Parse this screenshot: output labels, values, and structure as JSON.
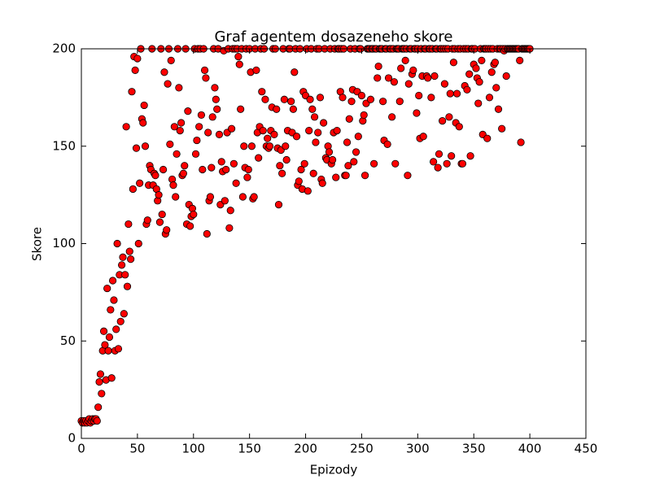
{
  "chart_data": {
    "type": "scatter",
    "title": "Graf agentem dosazeneho skore",
    "x_label": "Epizody",
    "y_label": "Skore",
    "xlim": [
      0,
      450
    ],
    "ylim": [
      0,
      200
    ],
    "xticks": [
      0,
      50,
      100,
      150,
      200,
      250,
      300,
      350,
      400,
      450
    ],
    "yticks": [
      0,
      50,
      100,
      150,
      200
    ],
    "grid": false,
    "series": [
      {
        "color": "#ff0000",
        "x": [
          0,
          1,
          2,
          3,
          4,
          5,
          6,
          7,
          8,
          9,
          10,
          11,
          12,
          13,
          14,
          15,
          16,
          17,
          18,
          19,
          20,
          21,
          22,
          23,
          24,
          25,
          26,
          27,
          28,
          29,
          30,
          31,
          32,
          33,
          34,
          35,
          36,
          37,
          38,
          39,
          40,
          41,
          42,
          43,
          44,
          45,
          46,
          47,
          48,
          49,
          50,
          51,
          52,
          53,
          54,
          55,
          56,
          57,
          58,
          59,
          60,
          61,
          62,
          63,
          64,
          65,
          66,
          67,
          68,
          69,
          70,
          71,
          72,
          73,
          74,
          75,
          76,
          77,
          78,
          79,
          80,
          81,
          82,
          83,
          84,
          85,
          86,
          87,
          88,
          89,
          90,
          91,
          92,
          93,
          94,
          95,
          96,
          97,
          98,
          99,
          100,
          101,
          102,
          103,
          104,
          105,
          106,
          107,
          108,
          109,
          110,
          111,
          112,
          113,
          114,
          115,
          116,
          117,
          118,
          119,
          120,
          121,
          122,
          123,
          124,
          125,
          126,
          127,
          128,
          129,
          130,
          131,
          132,
          133,
          134,
          135,
          136,
          137,
          138,
          139,
          140,
          141,
          142,
          143,
          144,
          145,
          146,
          147,
          148,
          149,
          150,
          151,
          152,
          153,
          154,
          155,
          156,
          157,
          158,
          159,
          160,
          161,
          162,
          163,
          164,
          165,
          166,
          167,
          168,
          169,
          170,
          171,
          172,
          173,
          174,
          175,
          176,
          177,
          178,
          179,
          180,
          181,
          182,
          183,
          184,
          185,
          186,
          187,
          188,
          189,
          190,
          191,
          192,
          193,
          194,
          195,
          196,
          197,
          198,
          199,
          200,
          201,
          202,
          203,
          204,
          205,
          206,
          207,
          208,
          209,
          210,
          211,
          212,
          213,
          214,
          215,
          216,
          217,
          218,
          219,
          220,
          221,
          222,
          223,
          224,
          225,
          226,
          227,
          228,
          229,
          230,
          231,
          232,
          233,
          234,
          235,
          236,
          237,
          238,
          239,
          240,
          241,
          242,
          243,
          244,
          245,
          246,
          247,
          248,
          249,
          250,
          251,
          252,
          253,
          254,
          255,
          256,
          257,
          258,
          259,
          260,
          261,
          262,
          263,
          264,
          265,
          266,
          267,
          268,
          269,
          270,
          271,
          272,
          273,
          274,
          275,
          276,
          277,
          278,
          279,
          280,
          281,
          282,
          283,
          284,
          285,
          286,
          287,
          288,
          289,
          290,
          291,
          292,
          293,
          294,
          295,
          296,
          297,
          298,
          299,
          300,
          301,
          302,
          303,
          304,
          305,
          306,
          307,
          308,
          309,
          310,
          311,
          312,
          313,
          314,
          315,
          316,
          317,
          318,
          319,
          320,
          321,
          322,
          323,
          324,
          325,
          326,
          327,
          328,
          329,
          330,
          331,
          332,
          333,
          334,
          335,
          336,
          337,
          338,
          339,
          340,
          341,
          342,
          343,
          344,
          345,
          346,
          347,
          348,
          349,
          350,
          351,
          352,
          353,
          354,
          355,
          356,
          357,
          358,
          359,
          360,
          361,
          362,
          363,
          364,
          365,
          366,
          367,
          368,
          369,
          370,
          371,
          372,
          373,
          374,
          375,
          376,
          377,
          378,
          379,
          380,
          381,
          382,
          383,
          384,
          385,
          386,
          387,
          388,
          389,
          390,
          391,
          392,
          393,
          394,
          395,
          396,
          397,
          398,
          399,
          400
        ],
        "values": [
          9,
          8,
          9,
          8,
          9,
          8,
          9,
          10,
          8,
          9,
          10,
          9,
          10,
          10,
          9,
          16,
          29,
          33,
          23,
          45,
          55,
          48,
          30,
          77,
          45,
          52,
          66,
          31,
          81,
          71,
          45,
          56,
          100,
          46,
          84,
          60,
          89,
          93,
          64,
          84,
          160,
          78,
          110,
          96,
          92,
          178,
          128,
          196,
          189,
          149,
          195,
          100,
          131,
          200,
          164,
          162,
          171,
          150,
          110,
          112,
          130,
          140,
          138,
          200,
          130,
          136,
          135,
          128,
          122,
          125,
          111,
          200,
          115,
          138,
          188,
          105,
          107,
          182,
          200,
          151,
          194,
          133,
          130,
          160,
          124,
          146,
          200,
          180,
          158,
          162,
          135,
          136,
          140,
          200,
          110,
          168,
          120,
          109,
          114,
          118,
          115,
          200,
          146,
          153,
          200,
          160,
          200,
          166,
          138,
          200,
          189,
          185,
          105,
          157,
          122,
          124,
          139,
          165,
          200,
          180,
          174,
          169,
          200,
          156,
          120,
          142,
          137,
          199,
          122,
          138,
          157,
          200,
          108,
          117,
          159,
          200,
          141,
          200,
          131,
          200,
          196,
          192,
          169,
          200,
          124,
          150,
          139,
          200,
          134,
          138,
          200,
          188,
          150,
          123,
          124,
          200,
          189,
          157,
          144,
          160,
          200,
          178,
          158,
          200,
          174,
          150,
          154,
          149,
          150,
          158,
          170,
          200,
          156,
          200,
          169,
          149,
          120,
          140,
          148,
          136,
          200,
          174,
          150,
          143,
          158,
          200,
          200,
          173,
          157,
          169,
          188,
          200,
          155,
          130,
          132,
          200,
          138,
          128,
          178,
          141,
          176,
          200,
          127,
          158,
          174,
          200,
          169,
          136,
          165,
          152,
          200,
          157,
          200,
          175,
          133,
          131,
          162,
          200,
          144,
          143,
          150,
          147,
          200,
          141,
          143,
          157,
          200,
          134,
          158,
          200,
          200,
          178,
          200,
          175,
          200,
          135,
          135,
          152,
          140,
          164,
          200,
          173,
          179,
          142,
          200,
          147,
          178,
          155,
          200,
          200,
          176,
          163,
          166,
          135,
          172,
          200,
          200,
          200,
          174,
          200,
          200,
          141,
          200,
          200,
          185,
          191,
          200,
          200,
          200,
          173,
          153,
          200,
          200,
          151,
          185,
          200,
          200,
          165,
          200,
          183,
          141,
          200,
          200,
          200,
          173,
          190,
          200,
          200,
          200,
          194,
          200,
          135,
          182,
          200,
          200,
          187,
          189,
          200,
          200,
          167,
          200,
          176,
          154,
          200,
          186,
          155,
          200,
          200,
          186,
          185,
          200,
          200,
          175,
          200,
          142,
          186,
          200,
          200,
          139,
          146,
          200,
          200,
          163,
          200,
          182,
          200,
          141,
          200,
          165,
          177,
          145,
          200,
          193,
          200,
          162,
          177,
          200,
          160,
          200,
          141,
          141,
          200,
          181,
          200,
          179,
          200,
          187,
          145,
          200,
          200,
          192,
          200,
          190,
          185,
          172,
          183,
          200,
          194,
          156,
          200,
          200,
          200,
          154,
          200,
          175,
          200,
          188,
          200,
          192,
          193,
          180,
          200,
          169,
          200,
          200,
          159,
          200,
          199,
          200,
          186,
          200,
          200,
          200,
          200,
          200,
          200,
          200,
          200,
          200,
          200,
          200,
          194,
          152,
          200,
          200,
          200,
          200,
          200,
          200,
          200,
          200
        ]
      }
    ]
  }
}
